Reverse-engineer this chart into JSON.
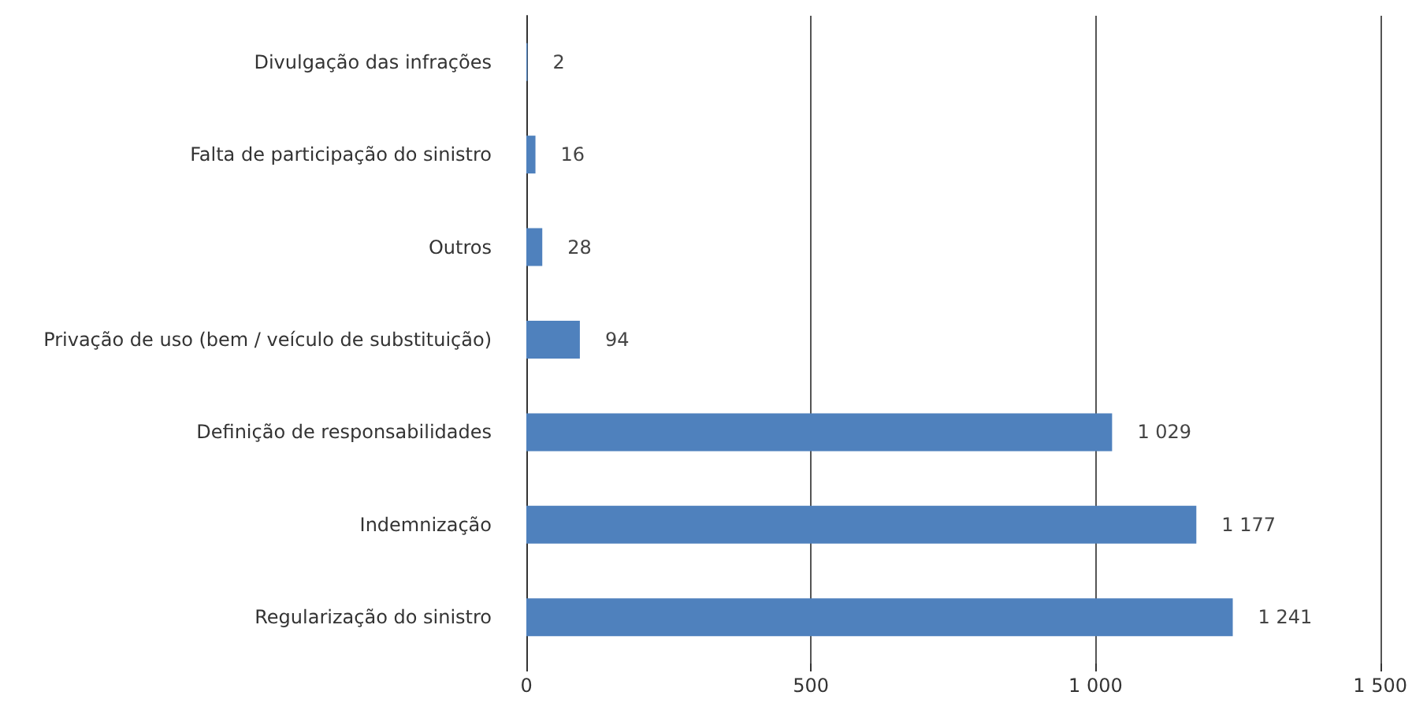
{
  "chart_data": {
    "type": "bar",
    "orientation": "horizontal",
    "categories": [
      "Divulgação das infrações",
      "Falta de participação do sinistro",
      "Outros",
      "Privação de uso (bem / veículo de substituição)",
      "Definição de responsabilidades",
      "Indemnização",
      "Regularização do sinistro"
    ],
    "values": [
      2,
      16,
      28,
      94,
      1029,
      1177,
      1241
    ],
    "value_labels": [
      "2",
      "16",
      "28",
      "94",
      "1 029",
      "1 177",
      "1 241"
    ],
    "color": "#4f81bd",
    "xlim": [
      0,
      1500
    ],
    "xticks": [
      0,
      500,
      {
        "value": 1000,
        "label": "1 000"
      },
      {
        "value": 1500,
        "label": "1 500"
      }
    ],
    "grid": "x"
  }
}
